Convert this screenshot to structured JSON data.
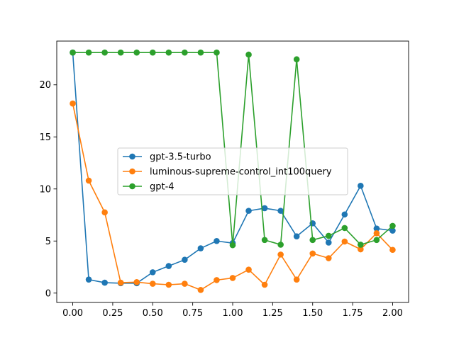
{
  "chart_data": {
    "type": "line",
    "title": "",
    "xlabel": "",
    "ylabel": "",
    "xlim": [
      -0.1,
      2.1
    ],
    "ylim": [
      -0.9,
      24.2
    ],
    "x_ticks": [
      0.0,
      0.25,
      0.5,
      0.75,
      1.0,
      1.25,
      1.5,
      1.75,
      2.0
    ],
    "x_tick_labels": [
      "0.00",
      "0.25",
      "0.50",
      "0.75",
      "1.00",
      "1.25",
      "1.50",
      "1.75",
      "2.00"
    ],
    "y_ticks": [
      0,
      5,
      10,
      15,
      20
    ],
    "y_tick_labels": [
      "0",
      "5",
      "10",
      "15",
      "20"
    ],
    "grid": false,
    "legend_position": "center-left",
    "x": [
      0.0,
      0.1,
      0.2,
      0.3,
      0.4,
      0.5,
      0.6,
      0.7,
      0.8,
      0.9,
      1.0,
      1.1,
      1.2,
      1.3,
      1.4,
      1.5,
      1.6,
      1.7,
      1.8,
      1.9,
      2.0
    ],
    "series": [
      {
        "name": "gpt-3.5-turbo",
        "color": "#1f77b4",
        "values": [
          23.1,
          1.3,
          1.0,
          0.95,
          0.95,
          2.0,
          2.6,
          3.2,
          4.3,
          5.0,
          4.8,
          7.9,
          8.15,
          7.9,
          5.45,
          6.7,
          4.85,
          7.55,
          10.3,
          6.2,
          6.0
        ]
      },
      {
        "name": "luminous-supreme-control_int100query",
        "color": "#ff7f0e",
        "values": [
          18.2,
          10.8,
          7.75,
          1.0,
          1.05,
          0.9,
          0.8,
          0.9,
          0.3,
          1.25,
          1.45,
          2.25,
          0.8,
          3.7,
          1.3,
          3.8,
          3.35,
          4.95,
          4.2,
          5.75,
          4.15
        ]
      },
      {
        "name": "gpt-4",
        "color": "#2ca02c",
        "values": [
          23.1,
          23.1,
          23.1,
          23.1,
          23.1,
          23.1,
          23.1,
          23.1,
          23.1,
          23.1,
          4.6,
          22.9,
          5.1,
          4.65,
          22.45,
          5.1,
          5.5,
          6.25,
          4.65,
          5.1,
          6.45
        ]
      }
    ]
  }
}
